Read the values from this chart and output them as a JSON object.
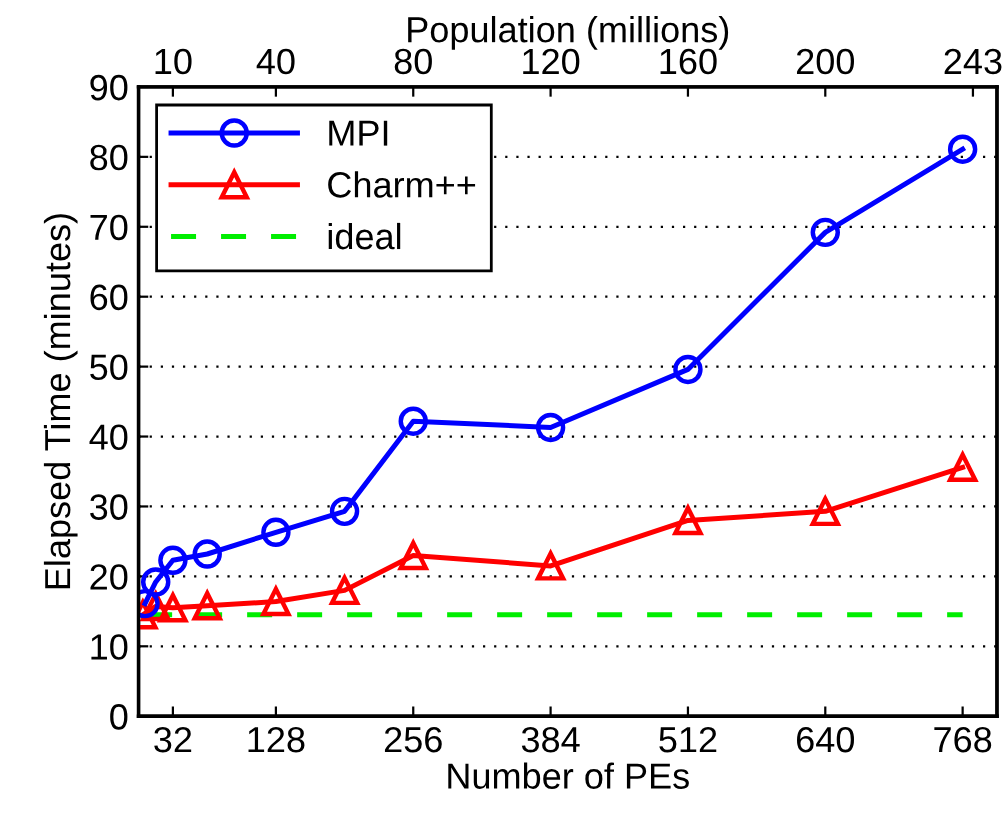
{
  "chart_data": {
    "type": "line",
    "xlabel": "Number of PEs",
    "ylabel": "Elapsed Time (minutes)",
    "x2label": "Population (millions)",
    "xlim": [
      0,
      800
    ],
    "xticks": [
      32,
      128,
      256,
      384,
      512,
      640,
      768
    ],
    "x2lim": [
      0,
      250
    ],
    "x2ticks": [
      10,
      40,
      80,
      120,
      160,
      200,
      243
    ],
    "ylim": [
      0,
      90
    ],
    "yticks": [
      0,
      10,
      20,
      30,
      40,
      50,
      60,
      70,
      80,
      90
    ],
    "grid": "y",
    "legend": "top left",
    "series": [
      {
        "name": "MPI",
        "color": "#0000ff",
        "marker": "circle",
        "line_style": "solid",
        "x": [
          6,
          16,
          32,
          64,
          128,
          192,
          256,
          384,
          512,
          640,
          768
        ],
        "values": [
          16.1,
          19.2,
          22.3,
          23.2,
          26.3,
          29.3,
          42.2,
          41.3,
          49.6,
          69.2,
          81.1
        ]
      },
      {
        "name": "Charm++",
        "color": "#ff0000",
        "marker": "triangle",
        "line_style": "solid",
        "x": [
          4,
          16,
          32,
          64,
          128,
          192,
          256,
          384,
          512,
          640,
          768
        ],
        "values": [
          14.5,
          15.7,
          15.5,
          15.8,
          16.4,
          18,
          23,
          21.5,
          28,
          29.3,
          35.6
        ]
      },
      {
        "name": "ideal",
        "color": "#00ee00",
        "marker": "none",
        "line_style": "dashed",
        "x": [
          8,
          768
        ],
        "values": [
          14.5,
          14.5
        ]
      }
    ]
  }
}
